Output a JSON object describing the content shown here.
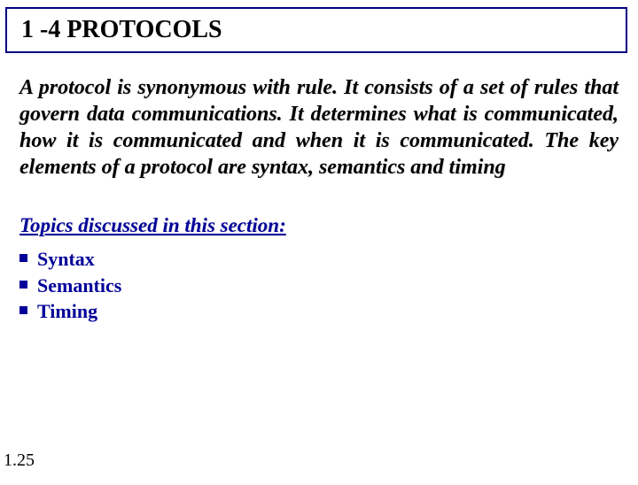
{
  "title": "1 -4   PROTOCOLS",
  "description": "A protocol is synonymous with rule. It consists of a set of rules that govern data communications. It determines what is communicated, how it is communicated and when it is communicated. The key elements of a protocol are syntax, semantics and timing",
  "topics_heading": "Topics discussed in this section:",
  "topics": {
    "item0": "Syntax",
    "item1": "Semantics",
    "item2": "Timing"
  },
  "page_number": "1.25",
  "colors": {
    "title_border": "#000080",
    "heading_color": "#000099",
    "text_color": "#000000",
    "background": "#ffffff"
  },
  "typography": {
    "title_fontsize": 28,
    "description_fontsize": 24,
    "topics_heading_fontsize": 23,
    "topics_item_fontsize": 22,
    "page_number_fontsize": 20,
    "font_family": "Times New Roman"
  }
}
